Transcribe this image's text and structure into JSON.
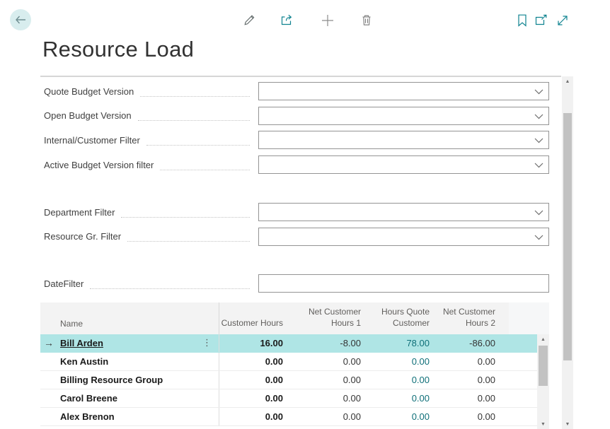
{
  "header": {
    "title": "Resource Load",
    "back_icon": "arrow-left"
  },
  "toolbar": {
    "left_icons": [
      {
        "name": "edit-pencil-icon",
        "color": "gray"
      },
      {
        "name": "share-icon",
        "color": "teal"
      },
      {
        "name": "new-plus-icon",
        "color": "gray"
      },
      {
        "name": "delete-trash-icon",
        "color": "gray"
      }
    ],
    "right_icons": [
      {
        "name": "bookmark-icon",
        "color": "teal"
      },
      {
        "name": "open-in-window-icon",
        "color": "teal"
      },
      {
        "name": "expand-icon",
        "color": "teal"
      }
    ]
  },
  "filters": {
    "group1": [
      {
        "label": "Quote Budget Version",
        "value": "",
        "has_dropdown": true
      },
      {
        "label": "Open Budget Version",
        "value": "",
        "has_dropdown": true
      },
      {
        "label": "Internal/Customer Filter",
        "value": "",
        "has_dropdown": true
      },
      {
        "label": "Active Budget Version filter",
        "value": "",
        "has_dropdown": true
      }
    ],
    "group2": [
      {
        "label": "Department Filter",
        "value": "",
        "has_dropdown": true
      },
      {
        "label": "Resource Gr. Filter",
        "value": "",
        "has_dropdown": true
      }
    ],
    "group3": [
      {
        "label": "DateFilter",
        "value": "",
        "has_dropdown": false
      }
    ]
  },
  "table": {
    "columns": [
      "Name",
      "Customer Hours",
      "Net Customer Hours 1",
      "Hours Quote Customer",
      "Net Customer Hours 2"
    ],
    "rows": [
      {
        "name": "Bill Arden",
        "selected": true,
        "customer_hours": "16.00",
        "net_customer_hours_1": "-8.00",
        "hours_quote_customer": "78.00",
        "net_customer_hours_2": "-86.00"
      },
      {
        "name": "Ken Austin",
        "selected": false,
        "customer_hours": "0.00",
        "net_customer_hours_1": "0.00",
        "hours_quote_customer": "0.00",
        "net_customer_hours_2": "0.00"
      },
      {
        "name": "Billing Resource Group",
        "selected": false,
        "customer_hours": "0.00",
        "net_customer_hours_1": "0.00",
        "hours_quote_customer": "0.00",
        "net_customer_hours_2": "0.00"
      },
      {
        "name": "Carol Breene",
        "selected": false,
        "customer_hours": "0.00",
        "net_customer_hours_1": "0.00",
        "hours_quote_customer": "0.00",
        "net_customer_hours_2": "0.00"
      },
      {
        "name": "Alex Brenon",
        "selected": false,
        "customer_hours": "0.00",
        "net_customer_hours_1": "0.00",
        "hours_quote_customer": "0.00",
        "net_customer_hours_2": "0.00"
      }
    ]
  },
  "colors": {
    "accent_teal": "#0f8390",
    "link_teal": "#0e6f78",
    "selected_row_bg": "#afe5e5",
    "back_button_bg": "#d8edee",
    "gray_icon": "#6b6b6b"
  }
}
